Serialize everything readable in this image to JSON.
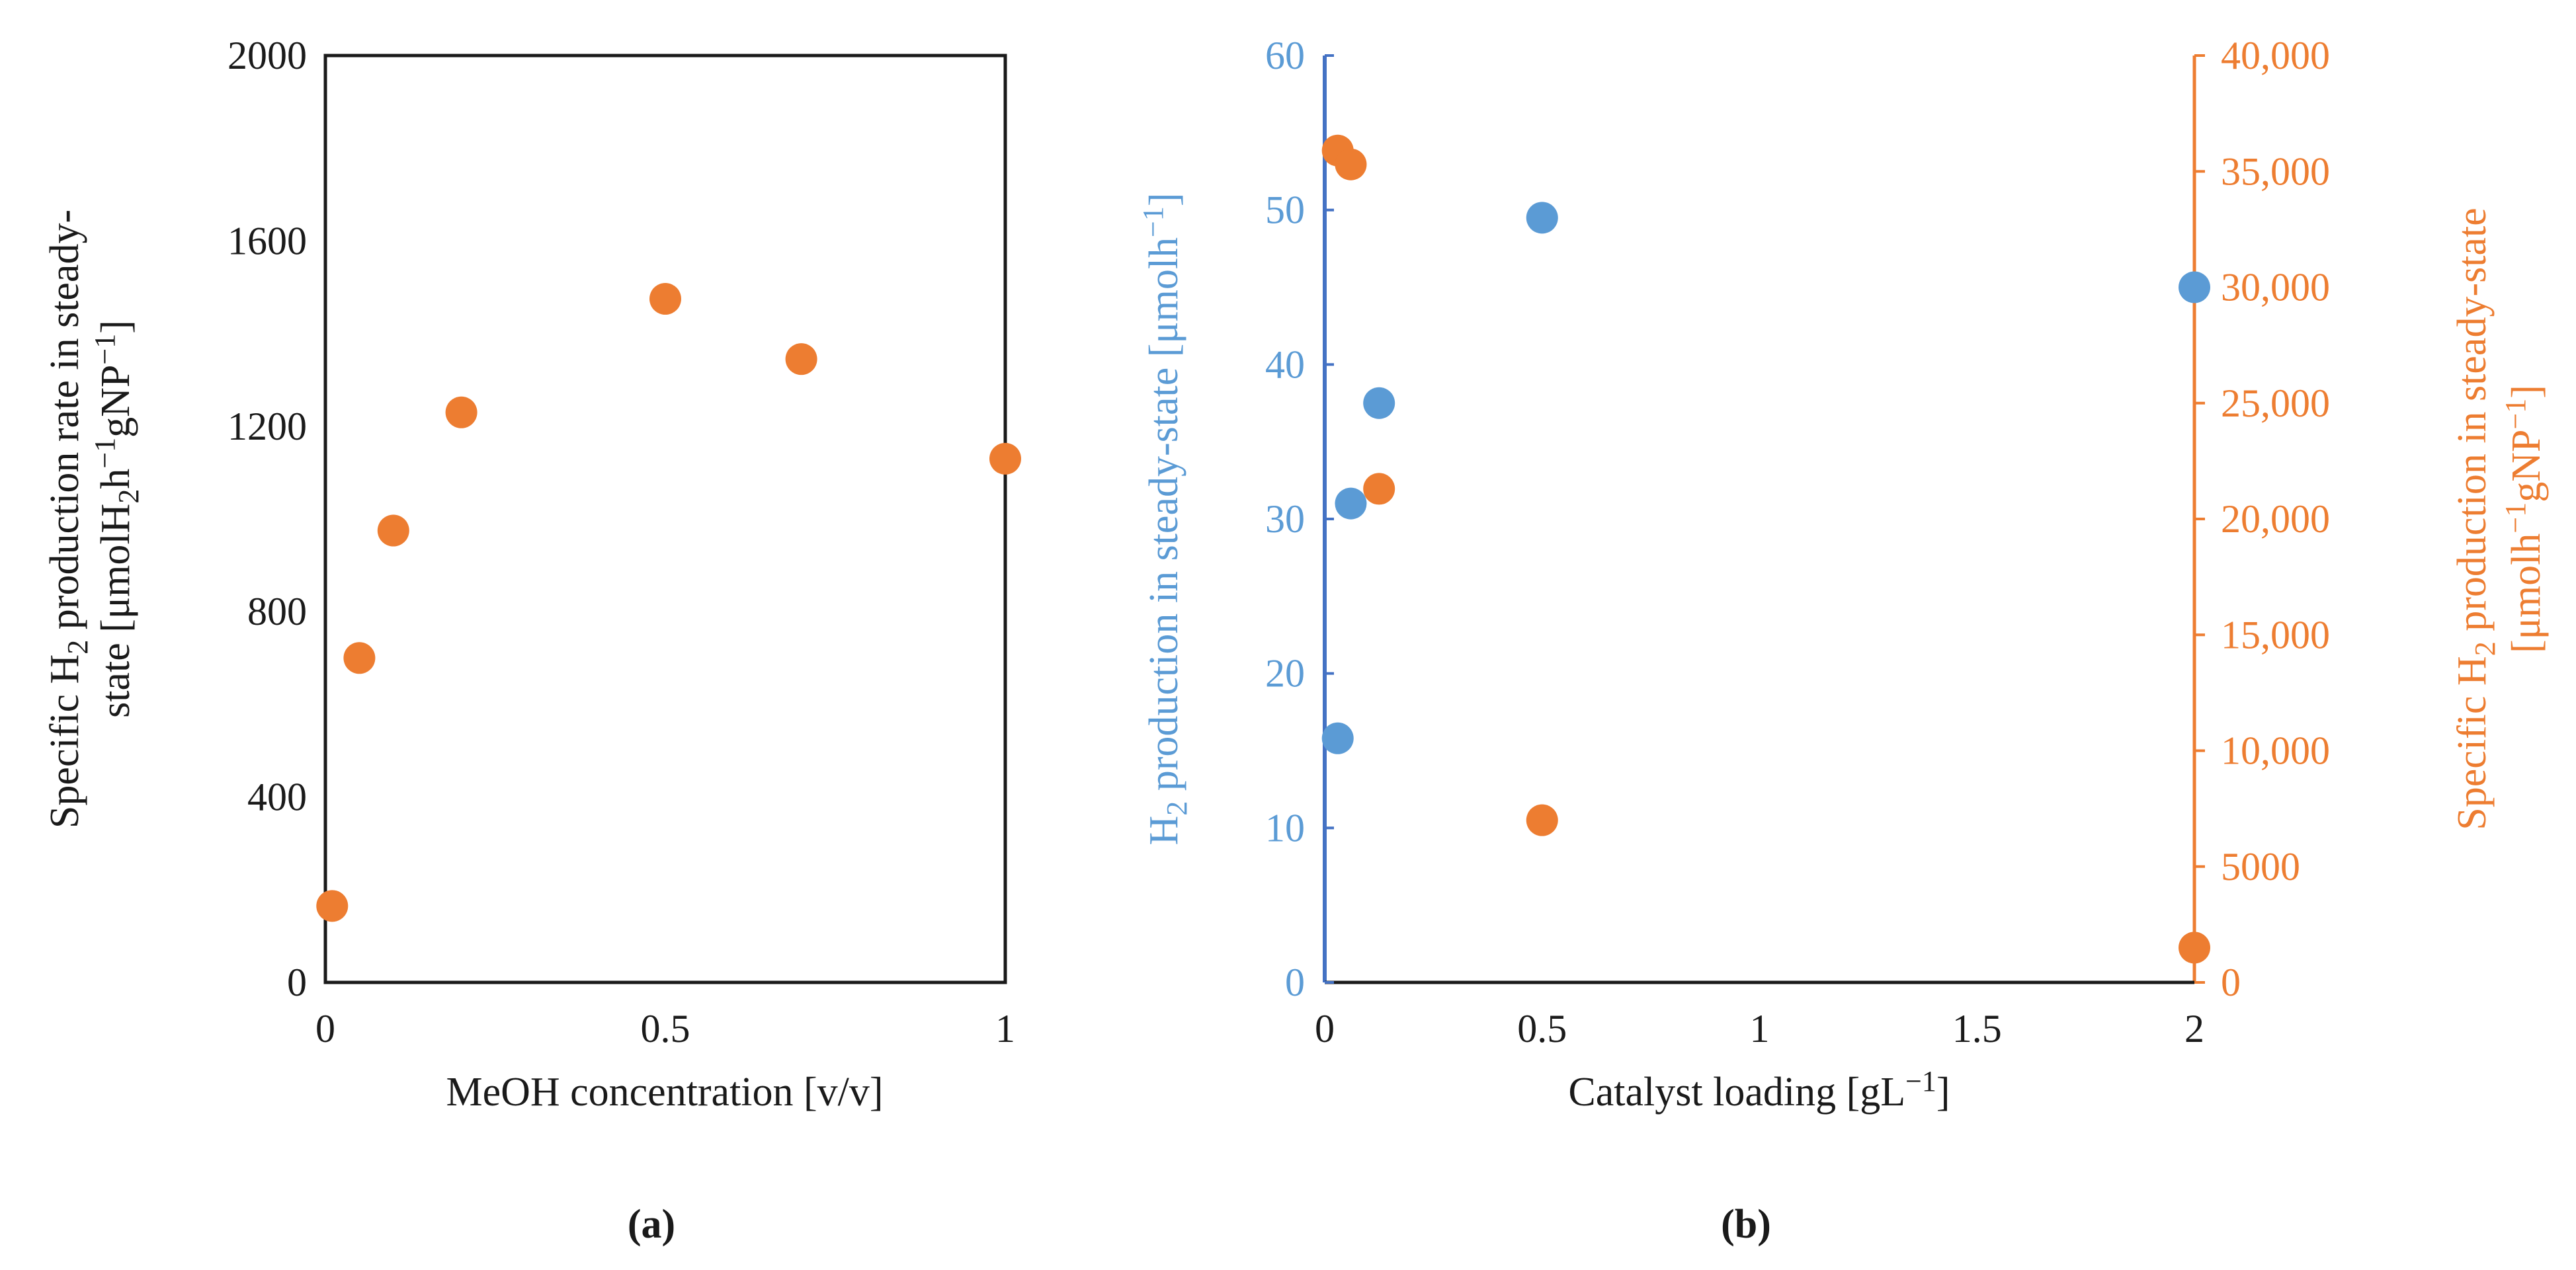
{
  "colors": {
    "orange": "#ED7D31",
    "blue": "#5B9BD5",
    "blueAxis": "#4472C4",
    "ink": "#1a1a1a"
  },
  "chart_data": [
    {
      "panel": "(a)",
      "type": "scatter",
      "xlabel": "MeOH concentration [v/v]",
      "ylabel_line1_prefix": "Specific H",
      "ylabel_line1_sub": "2",
      "ylabel_line1_suffix": " production rate in steady-",
      "ylabel_line2_prefix": "state [μmolH",
      "ylabel_line2_sub": "2",
      "ylabel_line2_mid": "h",
      "ylabel_line2_sup1": "−1",
      "ylabel_line2_mid2": "gNP",
      "ylabel_line2_sup2": "−1",
      "ylabel_line2_suffix": "]",
      "xlim": [
        0,
        1
      ],
      "ylim": [
        0,
        2000
      ],
      "xticks": [
        0,
        0.5,
        1
      ],
      "xtick_labels": [
        "0",
        "0.5",
        "1"
      ],
      "yticks": [
        0,
        400,
        800,
        1200,
        1600,
        2000
      ],
      "ytick_labels": [
        "0",
        "400",
        "800",
        "1200",
        "1600",
        "2000"
      ],
      "series": [
        {
          "name": "Specific H2 production rate",
          "color": "#ED7D31",
          "x": [
            0.01,
            0.05,
            0.1,
            0.2,
            0.5,
            0.7,
            1.0
          ],
          "y": [
            165,
            700,
            975,
            1230,
            1475,
            1345,
            1130
          ]
        }
      ]
    },
    {
      "panel": "(b)",
      "type": "scatter",
      "xlabel_prefix": "Catalyst loading [gL",
      "xlabel_sup": "−1",
      "xlabel_suffix": "]",
      "ylabel_left_prefix": "H",
      "ylabel_left_sub": "2",
      "ylabel_left_mid": " production in steady-state  [μmolh",
      "ylabel_left_sup": "−1",
      "ylabel_left_suffix": "]",
      "ylabel_right_line1_prefix": "Specific H",
      "ylabel_right_line1_sub": "2",
      "ylabel_right_line1_suffix": " production in steady-state",
      "ylabel_right_line2_prefix": "[μmolh",
      "ylabel_right_line2_sup1": "−1",
      "ylabel_right_line2_mid": "gNP",
      "ylabel_right_line2_sup2": "−1",
      "ylabel_right_line2_suffix": "]",
      "xlim": [
        0,
        2
      ],
      "ylim_left": [
        0,
        60
      ],
      "ylim_right": [
        0,
        40000
      ],
      "xticks": [
        0,
        0.5,
        1,
        1.5,
        2
      ],
      "xtick_labels": [
        "0",
        "0.5",
        "1",
        "1.5",
        "2"
      ],
      "yticks_left": [
        0,
        10,
        20,
        30,
        40,
        50,
        60
      ],
      "ytick_left_labels": [
        "0",
        "10",
        "20",
        "30",
        "40",
        "50",
        "60"
      ],
      "yticks_right": [
        0,
        5000,
        10000,
        15000,
        20000,
        25000,
        30000,
        35000,
        40000
      ],
      "ytick_right_labels": [
        "0",
        "5000",
        "10,000",
        "15,000",
        "20,000",
        "25,000",
        "30,000",
        "35,000",
        "40,000"
      ],
      "series": [
        {
          "name": "H2 production",
          "axis": "left",
          "color": "#5B9BD5",
          "x": [
            0.03,
            0.06,
            0.125,
            0.5,
            2.0
          ],
          "y": [
            15.8,
            31,
            37.5,
            49.5,
            45
          ]
        },
        {
          "name": "Specific H2 production",
          "axis": "right",
          "color": "#ED7D31",
          "x": [
            0.03,
            0.06,
            0.125,
            0.5,
            2.0
          ],
          "y": [
            35900,
            35300,
            21300,
            7000,
            1500
          ]
        }
      ]
    }
  ]
}
